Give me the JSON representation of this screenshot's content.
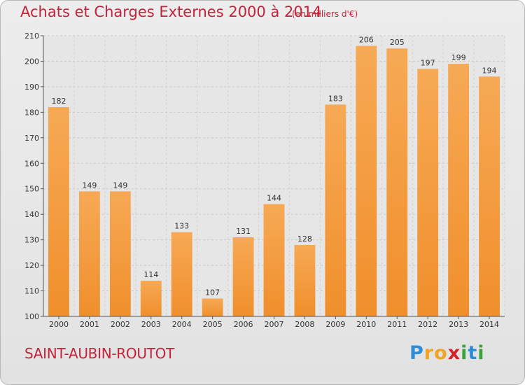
{
  "title": "Achats et Charges Externes 2000 à 2014",
  "subtitle": "(en milliers d'€)",
  "place": "SAINT-AUBIN-ROUTOT",
  "logo": {
    "letters": [
      "P",
      "r",
      "o",
      "x",
      "i",
      "t",
      "i"
    ],
    "colors": [
      "#2e8dd6",
      "#f0a324",
      "#f0a324",
      "#d2232a",
      "#3aa23a",
      "#2e8dd6",
      "#3aa23a"
    ]
  },
  "colors": {
    "bar": "#f08f2c",
    "bar_light": "#f7a955",
    "text": "#c4233a",
    "plot_bg": "#e6e6e6"
  },
  "chart_data": {
    "type": "bar",
    "categories": [
      "2000",
      "2001",
      "2002",
      "2003",
      "2004",
      "2005",
      "2006",
      "2007",
      "2008",
      "2009",
      "2010",
      "2011",
      "2012",
      "2013",
      "2014"
    ],
    "values": [
      182,
      149,
      149,
      114,
      133,
      107,
      131,
      144,
      128,
      183,
      206,
      205,
      197,
      199,
      194
    ],
    "ylim": [
      100,
      210
    ],
    "yticks": [
      100,
      110,
      120,
      130,
      140,
      150,
      160,
      170,
      180,
      190,
      200,
      210
    ],
    "grid": true,
    "data_labels": true
  }
}
